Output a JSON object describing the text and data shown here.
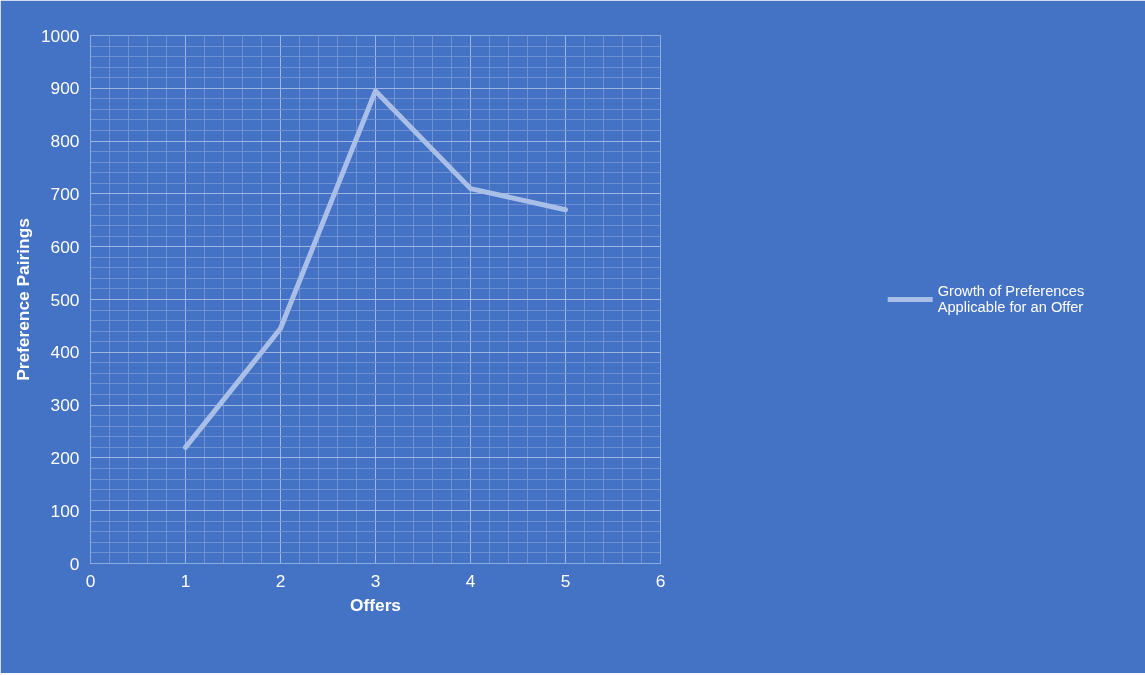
{
  "chart_data": {
    "type": "line",
    "xlabel": "Offers",
    "ylabel": "Preference Pairings",
    "x": [
      1,
      2,
      3,
      4,
      5
    ],
    "series": [
      {
        "name": "Growth of Preferences Applicable for an Offer",
        "color": "#a9bfe8",
        "values": [
          220,
          445,
          895,
          710,
          670
        ]
      }
    ],
    "xlim": [
      0,
      6
    ],
    "xticks": [
      0,
      1,
      2,
      3,
      4,
      5,
      6
    ],
    "ylim": [
      0,
      1000
    ],
    "yticks": [
      0,
      100,
      200,
      300,
      400,
      500,
      600,
      700,
      800,
      900,
      1000
    ],
    "grid": true,
    "legend": "right",
    "marker": "none",
    "line_style": "solid"
  }
}
